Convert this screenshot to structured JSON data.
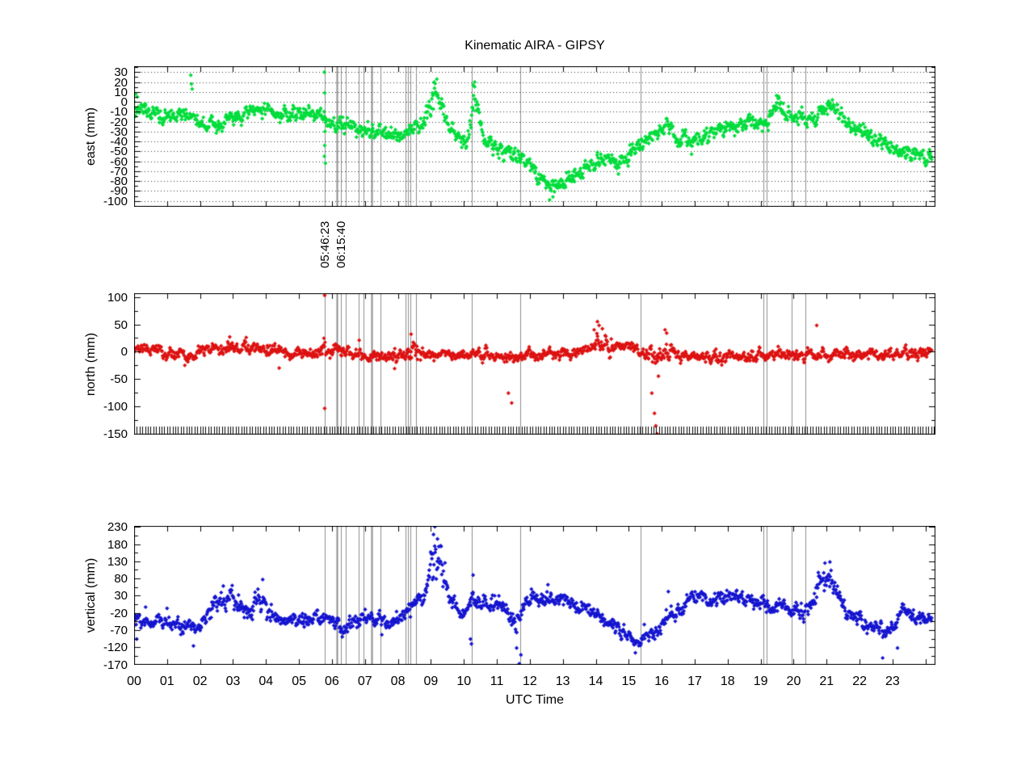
{
  "title": "Kinematic AIRA - GIPSY",
  "xaxis": {
    "label": "UTC Time",
    "tick_labels": [
      "00",
      "01",
      "02",
      "03",
      "04",
      "05",
      "06",
      "07",
      "08",
      "09",
      "10",
      "11",
      "12",
      "13",
      "14",
      "15",
      "16",
      "17",
      "18",
      "19",
      "20",
      "21",
      "22",
      "23"
    ],
    "xlim_hours": [
      0,
      24.3
    ]
  },
  "event_lines": {
    "color": "#8c8c8c",
    "label_1": "05:46:23",
    "label_2": "06:15:40",
    "times": [
      5.773,
      6.14,
      6.261,
      6.43,
      6.82,
      6.96,
      7.21,
      7.46,
      8.23,
      8.3,
      8.38,
      8.55,
      10.23,
      11.71,
      15.36,
      19.08,
      19.18,
      19.94,
      20.36
    ],
    "widths": [
      1,
      2,
      1,
      1,
      1,
      1,
      2,
      1,
      1,
      1,
      1,
      1,
      1,
      1,
      1,
      1,
      1,
      1,
      1
    ]
  },
  "chart_data": [
    {
      "type": "scatter",
      "name": "east",
      "ylabel": "east (mm)",
      "color": "#00dd3c",
      "marker": "diamond",
      "grid": true,
      "ylim": [
        -106,
        36
      ],
      "yticks": [
        30,
        20,
        10,
        0,
        -10,
        -20,
        -30,
        -40,
        -50,
        -60,
        -70,
        -80,
        -90,
        -100
      ],
      "ytick_minor_step": 5,
      "noise_sigma": 4.5,
      "sigma_regions": [
        [
          8.8,
          9.45,
          8
        ],
        [
          19.4,
          19.7,
          6
        ],
        [
          10.15,
          10.45,
          7
        ]
      ],
      "trend": [
        [
          0,
          -3
        ],
        [
          0.25,
          -8
        ],
        [
          0.7,
          -12
        ],
        [
          1.2,
          -13
        ],
        [
          1.6,
          -15
        ],
        [
          1.9,
          -21
        ],
        [
          2.3,
          -24
        ],
        [
          2.7,
          -22
        ],
        [
          3.1,
          -16
        ],
        [
          3.5,
          -11
        ],
        [
          3.9,
          -8
        ],
        [
          4.3,
          -12
        ],
        [
          4.8,
          -13
        ],
        [
          5.3,
          -12
        ],
        [
          5.8,
          -15
        ],
        [
          6.1,
          -22
        ],
        [
          6.5,
          -27
        ],
        [
          7.0,
          -29
        ],
        [
          7.4,
          -33
        ],
        [
          7.9,
          -34
        ],
        [
          8.3,
          -29
        ],
        [
          8.6,
          -25
        ],
        [
          8.85,
          -14
        ],
        [
          9.05,
          2
        ],
        [
          9.2,
          10
        ],
        [
          9.35,
          -3
        ],
        [
          9.55,
          -22
        ],
        [
          9.8,
          -36
        ],
        [
          10.1,
          -42
        ],
        [
          10.22,
          -30
        ],
        [
          10.3,
          6
        ],
        [
          10.42,
          -4
        ],
        [
          10.6,
          -33
        ],
        [
          10.9,
          -45
        ],
        [
          11.3,
          -52
        ],
        [
          11.7,
          -58
        ],
        [
          12.1,
          -70
        ],
        [
          12.5,
          -80
        ],
        [
          12.75,
          -85
        ],
        [
          13.1,
          -79
        ],
        [
          13.5,
          -70
        ],
        [
          13.9,
          -62
        ],
        [
          14.3,
          -58
        ],
        [
          14.7,
          -62
        ],
        [
          15.1,
          -52
        ],
        [
          15.4,
          -42
        ],
        [
          15.8,
          -34
        ],
        [
          16.15,
          -26
        ],
        [
          16.5,
          -36
        ],
        [
          16.9,
          -40
        ],
        [
          17.3,
          -34
        ],
        [
          17.8,
          -29
        ],
        [
          18.3,
          -24
        ],
        [
          18.8,
          -22
        ],
        [
          19.2,
          -20
        ],
        [
          19.55,
          -6
        ],
        [
          19.75,
          -12
        ],
        [
          20.1,
          -14
        ],
        [
          20.5,
          -18
        ],
        [
          20.8,
          -13
        ],
        [
          21.05,
          -6
        ],
        [
          21.35,
          -13
        ],
        [
          21.8,
          -26
        ],
        [
          22.2,
          -33
        ],
        [
          22.6,
          -40
        ],
        [
          23.0,
          -47
        ],
        [
          23.5,
          -51
        ],
        [
          24.0,
          -55
        ],
        [
          24.2,
          -54
        ]
      ],
      "outliers": [
        [
          1.72,
          27
        ],
        [
          1.74,
          18
        ],
        [
          1.76,
          13
        ],
        [
          9.1,
          20
        ],
        [
          9.18,
          23
        ],
        [
          10.28,
          17
        ],
        [
          10.33,
          20
        ],
        [
          5.77,
          30
        ],
        [
          5.78,
          9
        ],
        [
          5.79,
          -30
        ],
        [
          5.78,
          -44
        ],
        [
          5.77,
          -55
        ],
        [
          5.8,
          -62
        ],
        [
          12.6,
          -99
        ],
        [
          12.7,
          -96
        ],
        [
          0.05,
          8
        ],
        [
          0.1,
          5
        ]
      ]
    },
    {
      "type": "scatter",
      "name": "north",
      "ylabel": "north (mm)",
      "color": "#dd1212",
      "marker": "diamond",
      "grid": false,
      "ylim": [
        -152,
        107
      ],
      "yticks": [
        100,
        50,
        0,
        -50,
        -100,
        -150
      ],
      "ytick_minor_step": 25,
      "noise_sigma": 6,
      "sigma_regions": [
        [
          5.7,
          5.9,
          11
        ],
        [
          14.0,
          14.5,
          11
        ],
        [
          15.6,
          16.3,
          10
        ],
        [
          8.2,
          8.6,
          10
        ]
      ],
      "trend": [
        [
          0,
          7
        ],
        [
          0.4,
          4
        ],
        [
          0.9,
          -4
        ],
        [
          1.4,
          -7
        ],
        [
          1.9,
          -6
        ],
        [
          2.4,
          1
        ],
        [
          2.9,
          6
        ],
        [
          3.4,
          8
        ],
        [
          3.9,
          5
        ],
        [
          4.4,
          1
        ],
        [
          4.9,
          -1
        ],
        [
          5.4,
          -2
        ],
        [
          5.9,
          0
        ],
        [
          6.4,
          -2
        ],
        [
          6.9,
          -5
        ],
        [
          7.4,
          -9
        ],
        [
          7.9,
          -13
        ],
        [
          8.2,
          -10
        ],
        [
          8.5,
          -2
        ],
        [
          9.0,
          -5
        ],
        [
          9.5,
          -8
        ],
        [
          10.0,
          -4
        ],
        [
          10.5,
          -7
        ],
        [
          11.0,
          -9
        ],
        [
          11.4,
          -12
        ],
        [
          11.8,
          -7
        ],
        [
          12.3,
          -5
        ],
        [
          12.8,
          -3
        ],
        [
          13.3,
          -5
        ],
        [
          13.8,
          6
        ],
        [
          14.1,
          14
        ],
        [
          14.45,
          9
        ],
        [
          14.9,
          8
        ],
        [
          15.2,
          4
        ],
        [
          15.5,
          -4
        ],
        [
          15.9,
          -9
        ],
        [
          16.15,
          0
        ],
        [
          16.5,
          -8
        ],
        [
          17.0,
          -11
        ],
        [
          17.5,
          -9
        ],
        [
          18.0,
          -7
        ],
        [
          18.5,
          -9
        ],
        [
          19.0,
          -7
        ],
        [
          19.4,
          -5
        ],
        [
          19.8,
          -7
        ],
        [
          20.2,
          -8
        ],
        [
          20.6,
          -4
        ],
        [
          21.0,
          -3
        ],
        [
          21.5,
          -6
        ],
        [
          22.0,
          -5
        ],
        [
          22.5,
          -7
        ],
        [
          23.0,
          -5
        ],
        [
          23.5,
          -3
        ],
        [
          24.2,
          -2
        ]
      ],
      "outliers": [
        [
          5.78,
          103
        ],
        [
          5.78,
          -104
        ],
        [
          11.35,
          -76
        ],
        [
          11.45,
          -94
        ],
        [
          14.05,
          55
        ],
        [
          14.1,
          48
        ],
        [
          14.2,
          42
        ],
        [
          15.7,
          -76
        ],
        [
          15.78,
          -113
        ],
        [
          15.82,
          -136
        ],
        [
          15.86,
          -152
        ],
        [
          16.1,
          40
        ],
        [
          16.15,
          34
        ],
        [
          20.7,
          48
        ],
        [
          8.4,
          32
        ],
        [
          2.9,
          27
        ],
        [
          3.4,
          26
        ],
        [
          13.95,
          40
        ],
        [
          15.9,
          -45
        ],
        [
          4.4,
          -30
        ],
        [
          7.9,
          -31
        ]
      ]
    },
    {
      "type": "scatter",
      "name": "vertical",
      "ylabel": "vertical (mm)",
      "color": "#1515d0",
      "marker": "diamond",
      "grid": false,
      "ylim": [
        -171,
        233
      ],
      "yticks": [
        230,
        180,
        130,
        80,
        30,
        -20,
        -70,
        -120,
        -170
      ],
      "ytick_minor_step": 25,
      "noise_sigma": 12,
      "sigma_regions": [
        [
          8.9,
          9.45,
          38
        ],
        [
          20.6,
          21.35,
          22
        ],
        [
          2.2,
          4.2,
          17
        ],
        [
          11.4,
          11.8,
          20
        ]
      ],
      "trend": [
        [
          0,
          -42
        ],
        [
          0.4,
          -48
        ],
        [
          0.8,
          -50
        ],
        [
          1.2,
          -56
        ],
        [
          1.6,
          -64
        ],
        [
          1.9,
          -58
        ],
        [
          2.2,
          -22
        ],
        [
          2.5,
          12
        ],
        [
          2.8,
          22
        ],
        [
          3.1,
          8
        ],
        [
          3.35,
          -14
        ],
        [
          3.6,
          -6
        ],
        [
          3.85,
          22
        ],
        [
          4.1,
          -12
        ],
        [
          4.4,
          -38
        ],
        [
          4.8,
          -45
        ],
        [
          5.2,
          -42
        ],
        [
          5.6,
          -38
        ],
        [
          6.0,
          -48
        ],
        [
          6.35,
          -62
        ],
        [
          6.7,
          -42
        ],
        [
          7.0,
          -30
        ],
        [
          7.3,
          -38
        ],
        [
          7.6,
          -46
        ],
        [
          8.0,
          -44
        ],
        [
          8.25,
          -22
        ],
        [
          8.55,
          12
        ],
        [
          8.85,
          38
        ],
        [
          9.0,
          80
        ],
        [
          9.12,
          145
        ],
        [
          9.25,
          110
        ],
        [
          9.4,
          58
        ],
        [
          9.6,
          18
        ],
        [
          9.85,
          -12
        ],
        [
          10.1,
          -8
        ],
        [
          10.25,
          35
        ],
        [
          10.4,
          2
        ],
        [
          10.7,
          6
        ],
        [
          11.0,
          12
        ],
        [
          11.3,
          -2
        ],
        [
          11.5,
          -48
        ],
        [
          11.65,
          -55
        ],
        [
          11.85,
          5
        ],
        [
          12.15,
          18
        ],
        [
          12.5,
          26
        ],
        [
          12.85,
          14
        ],
        [
          13.2,
          8
        ],
        [
          13.6,
          -6
        ],
        [
          14.0,
          -22
        ],
        [
          14.4,
          -48
        ],
        [
          14.8,
          -75
        ],
        [
          15.1,
          -100
        ],
        [
          15.35,
          -110
        ],
        [
          15.65,
          -88
        ],
        [
          15.95,
          -60
        ],
        [
          16.25,
          -28
        ],
        [
          16.55,
          -12
        ],
        [
          16.85,
          16
        ],
        [
          17.1,
          26
        ],
        [
          17.4,
          14
        ],
        [
          17.7,
          20
        ],
        [
          18.05,
          26
        ],
        [
          18.4,
          20
        ],
        [
          18.8,
          26
        ],
        [
          19.1,
          12
        ],
        [
          19.4,
          -6
        ],
        [
          19.7,
          -2
        ],
        [
          20.0,
          -12
        ],
        [
          20.3,
          -14
        ],
        [
          20.6,
          12
        ],
        [
          20.85,
          68
        ],
        [
          21.1,
          80
        ],
        [
          21.3,
          42
        ],
        [
          21.55,
          -12
        ],
        [
          21.85,
          -32
        ],
        [
          22.15,
          -52
        ],
        [
          22.5,
          -62
        ],
        [
          22.85,
          -72
        ],
        [
          23.1,
          -58
        ],
        [
          23.3,
          8
        ],
        [
          23.55,
          -22
        ],
        [
          23.85,
          -42
        ],
        [
          24.2,
          -36
        ]
      ],
      "outliers": [
        [
          9.12,
          231
        ],
        [
          9.08,
          208
        ],
        [
          9.2,
          195
        ],
        [
          9.3,
          175
        ],
        [
          1.8,
          -116
        ],
        [
          11.6,
          -122
        ],
        [
          11.68,
          -168
        ],
        [
          11.73,
          -142
        ],
        [
          15.2,
          -136
        ],
        [
          10.2,
          -96
        ],
        [
          10.23,
          -110
        ],
        [
          3.9,
          77
        ],
        [
          10.28,
          90
        ],
        [
          20.95,
          125
        ],
        [
          21.1,
          128
        ],
        [
          22.7,
          -151
        ],
        [
          23.15,
          -122
        ],
        [
          0.08,
          -96
        ],
        [
          12.55,
          62
        ],
        [
          16.2,
          42
        ]
      ]
    }
  ]
}
